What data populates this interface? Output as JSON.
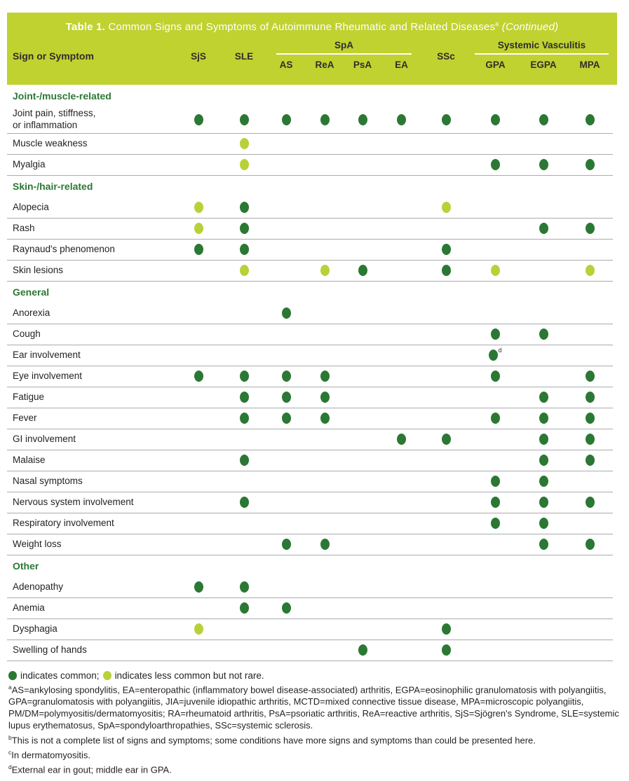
{
  "colors": {
    "band": "#bfd230",
    "common": "#2b7834",
    "less_common": "#b9d138",
    "header_ink": "#2f2d2b",
    "row_line": "#a9abae"
  },
  "title": {
    "prefix": "Table 1.",
    "main": " Common Signs and Symptoms of Autoimmune Rheumatic and Related Diseases",
    "superscript": "a",
    "continued": " (Continued)"
  },
  "table": {
    "columns": {
      "label": "Sign or Symptom",
      "leaf": [
        "SjS",
        "SLE",
        "AS",
        "ReA",
        "PsA",
        "EA",
        "SSc",
        "GPA",
        "EGPA",
        "MPA"
      ],
      "groups": [
        {
          "label": "SpA",
          "members": [
            "AS",
            "ReA",
            "PsA",
            "EA"
          ]
        },
        {
          "label": "Systemic Vasculitis",
          "members": [
            "GPA",
            "EGPA",
            "MPA"
          ]
        }
      ]
    },
    "cell_legend": {
      "C": "common",
      "L": "less common but not rare",
      "Cd": "common, footnote d",
      "": "not marked"
    },
    "sections": [
      {
        "name": "Joint-/muscle-related",
        "rows": [
          {
            "label": "Joint pain, stiffness,\nor inflammation",
            "cells": [
              "C",
              "C",
              "C",
              "C",
              "C",
              "C",
              "C",
              "C",
              "C",
              "C"
            ]
          },
          {
            "label": "Muscle weakness",
            "cells": [
              "",
              "L",
              "",
              "",
              "",
              "",
              "",
              "",
              "",
              ""
            ]
          },
          {
            "label": "Myalgia",
            "cells": [
              "",
              "L",
              "",
              "",
              "",
              "",
              "",
              "C",
              "C",
              "C"
            ]
          }
        ]
      },
      {
        "name": "Skin-/hair-related",
        "rows": [
          {
            "label": "Alopecia",
            "cells": [
              "L",
              "C",
              "",
              "",
              "",
              "",
              "L",
              "",
              "",
              ""
            ]
          },
          {
            "label": "Rash",
            "cells": [
              "L",
              "C",
              "",
              "",
              "",
              "",
              "",
              "",
              "C",
              "C"
            ]
          },
          {
            "label": "Raynaud's phenomenon",
            "cells": [
              "C",
              "C",
              "",
              "",
              "",
              "",
              "C",
              "",
              "",
              ""
            ]
          },
          {
            "label": "Skin lesions",
            "cells": [
              "",
              "L",
              "",
              "L",
              "C",
              "",
              "C",
              "L",
              "",
              "L"
            ]
          }
        ]
      },
      {
        "name": "General",
        "rows": [
          {
            "label": "Anorexia",
            "cells": [
              "",
              "",
              "C",
              "",
              "",
              "",
              "",
              "",
              "",
              ""
            ]
          },
          {
            "label": "Cough",
            "cells": [
              "",
              "",
              "",
              "",
              "",
              "",
              "",
              "C",
              "C",
              ""
            ]
          },
          {
            "label": "Ear involvement",
            "cells": [
              "",
              "",
              "",
              "",
              "",
              "",
              "",
              "Cd",
              "",
              ""
            ]
          },
          {
            "label": "Eye involvement",
            "cells": [
              "C",
              "C",
              "C",
              "C",
              "",
              "",
              "",
              "C",
              "",
              "C"
            ]
          },
          {
            "label": "Fatigue",
            "cells": [
              "",
              "C",
              "C",
              "C",
              "",
              "",
              "",
              "",
              "C",
              "C"
            ]
          },
          {
            "label": "Fever",
            "cells": [
              "",
              "C",
              "C",
              "C",
              "",
              "",
              "",
              "C",
              "C",
              "C"
            ]
          },
          {
            "label": "GI involvement",
            "cells": [
              "",
              "",
              "",
              "",
              "",
              "C",
              "C",
              "",
              "C",
              "C"
            ]
          },
          {
            "label": "Malaise",
            "cells": [
              "",
              "C",
              "",
              "",
              "",
              "",
              "",
              "",
              "C",
              "C"
            ]
          },
          {
            "label": "Nasal symptoms",
            "cells": [
              "",
              "",
              "",
              "",
              "",
              "",
              "",
              "C",
              "C",
              ""
            ]
          },
          {
            "label": "Nervous system involvement",
            "cells": [
              "",
              "C",
              "",
              "",
              "",
              "",
              "",
              "C",
              "C",
              "C"
            ]
          },
          {
            "label": "Respiratory involvement",
            "cells": [
              "",
              "",
              "",
              "",
              "",
              "",
              "",
              "C",
              "C",
              ""
            ]
          },
          {
            "label": "Weight loss",
            "cells": [
              "",
              "",
              "C",
              "C",
              "",
              "",
              "",
              "",
              "C",
              "C"
            ]
          }
        ]
      },
      {
        "name": "Other",
        "rows": [
          {
            "label": "Adenopathy",
            "cells": [
              "C",
              "C",
              "",
              "",
              "",
              "",
              "",
              "",
              "",
              ""
            ]
          },
          {
            "label": "Anemia",
            "cells": [
              "",
              "C",
              "C",
              "",
              "",
              "",
              "",
              "",
              "",
              ""
            ]
          },
          {
            "label": "Dysphagia",
            "cells": [
              "L",
              "",
              "",
              "",
              "",
              "",
              "C",
              "",
              "",
              ""
            ]
          },
          {
            "label": "Swelling of hands",
            "cells": [
              "",
              "",
              "",
              "",
              "C",
              "",
              "C",
              "",
              "",
              ""
            ]
          }
        ]
      }
    ]
  },
  "legend": {
    "common_text": "indicates common;",
    "less_common_text": "indicates less common but not rare."
  },
  "footnotes": [
    {
      "marker": "a",
      "text": "AS=ankylosing spondylitis, EA=enteropathic (inflammatory bowel disease-associated) arthritis, EGPA=eosinophilic granulomatosis with polyangiitis, GPA=granulomatosis with polyangiitis, JIA=juvenile idiopathic arthritis, MCTD=mixed connective tissue disease, MPA=microscopic polyangiitis, PM/DM=polymyositis/dermatomyositis; RA=rheumatoid arthritis, PsA=psoriatic arthritis, ReA=reactive arthritis, SjS=Sjögren's Syndrome, SLE=systemic lupus erythematosus, SpA=spondyloarthropathies, SSc=systemic sclerosis."
    },
    {
      "marker": "b",
      "text": "This is not a complete list of signs and symptoms; some conditions have more signs and symptoms than could be presented here."
    },
    {
      "marker": "c",
      "text": "In dermatomyositis."
    },
    {
      "marker": "d",
      "text": "External ear in gout; middle ear in GPA."
    }
  ]
}
